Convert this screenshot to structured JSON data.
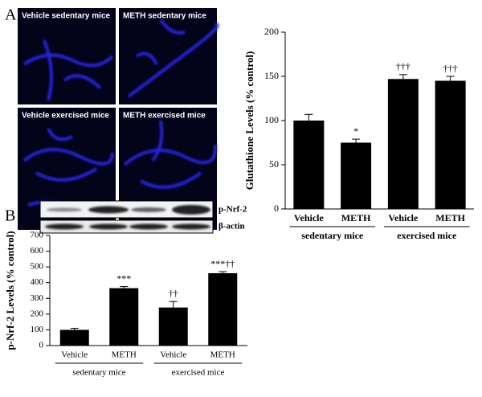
{
  "panel_labels": [
    "A",
    "B"
  ],
  "images": [
    "Vehicle sedentary mice",
    "METH sedentary mice",
    "Vehicle exercised mice",
    "METH exercised mice"
  ],
  "blot_labels": [
    "p-Nrf-2",
    "β-actin"
  ],
  "chart_data": [
    {
      "type": "bar",
      "ylabel": "Glutathione Levels (% control)",
      "categories": [
        "Vehicle",
        "METH",
        "Vehicle",
        "METH"
      ],
      "groups": [
        "sedentary mice",
        "exercised mice"
      ],
      "values": [
        100,
        75,
        147,
        145
      ],
      "errors": [
        7,
        4,
        5,
        5
      ],
      "annotations": [
        null,
        "*",
        "†††",
        "†††"
      ],
      "color": "#000000",
      "ylim": [
        0,
        200
      ],
      "yticks": [
        0,
        50,
        100,
        150,
        200
      ]
    },
    {
      "type": "bar",
      "ylabel": "p-Nrf-2 Levels (% control)",
      "categories": [
        "Vehicle",
        "METH",
        "Vehicle",
        "METH"
      ],
      "groups": [
        "sedentary mice",
        "exercised mice"
      ],
      "values": [
        100,
        365,
        242,
        460
      ],
      "errors": [
        10,
        10,
        38,
        10
      ],
      "annotations": [
        null,
        "***",
        "††",
        "***††"
      ],
      "color": "#000000",
      "ylim": [
        0,
        700
      ],
      "yticks": [
        0,
        100,
        200,
        300,
        400,
        500,
        600,
        700
      ]
    }
  ]
}
